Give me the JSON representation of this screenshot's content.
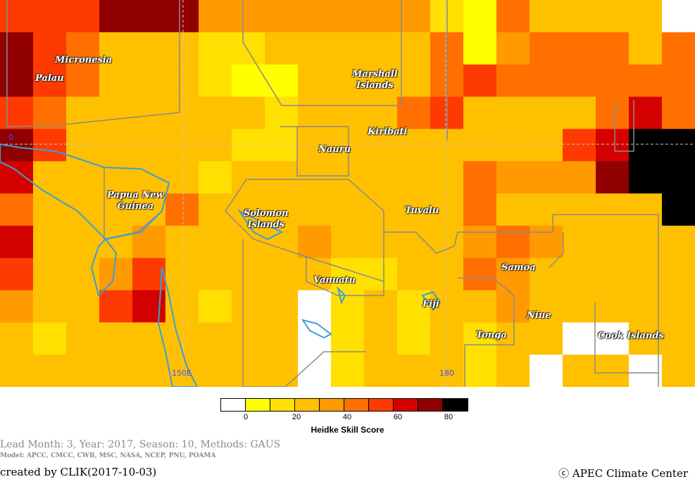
{
  "map": {
    "places": [
      {
        "id": "micronesia",
        "text": "Micronesia"
      },
      {
        "id": "palau",
        "text": "Palau"
      },
      {
        "id": "marshall",
        "text": "Marshall\nIslands"
      },
      {
        "id": "kiribati",
        "text": "Kiribati"
      },
      {
        "id": "nauru",
        "text": "Nauru"
      },
      {
        "id": "png",
        "text": "Papua New\nGuinea"
      },
      {
        "id": "solomon",
        "text": "Solomon\nIslands"
      },
      {
        "id": "tuvalu",
        "text": "Tuvalu"
      },
      {
        "id": "samoa",
        "text": "Samoa"
      },
      {
        "id": "vanuatu",
        "text": "Vanuatu"
      },
      {
        "id": "fiji",
        "text": "Fiji"
      },
      {
        "id": "niue",
        "text": "Niue"
      },
      {
        "id": "tonga",
        "text": "Tonga"
      },
      {
        "id": "cook",
        "text": "Cook Islands"
      }
    ],
    "lat_label": "0",
    "lon_labels": [
      "150E",
      "180"
    ],
    "colors": {
      "land": "#3a9fd6",
      "boundary": "#8a8a8a",
      "grid": "#c8c8c8"
    }
  },
  "colorbar": {
    "colors": [
      "#ffffff",
      "#ffff00",
      "#ffe000",
      "#ffc000",
      "#ff9a00",
      "#ff7000",
      "#ff3a00",
      "#d40000",
      "#900000",
      "#000000"
    ],
    "ticks": [
      "0",
      "20",
      "40",
      "60",
      "80"
    ],
    "title": "Heidke Skill Score"
  },
  "footer": {
    "lead_line": "Lead Month: 3, Year: 2017, Season: 10, Methods: GAUS",
    "model_line": "Model: APCC, CMCC, CWB, MSC, NASA, NCEP, PNU, POAMA",
    "created": "created by CLIK(2017-10-03)",
    "copyright": "ⓒ APEC Climate Center"
  }
}
